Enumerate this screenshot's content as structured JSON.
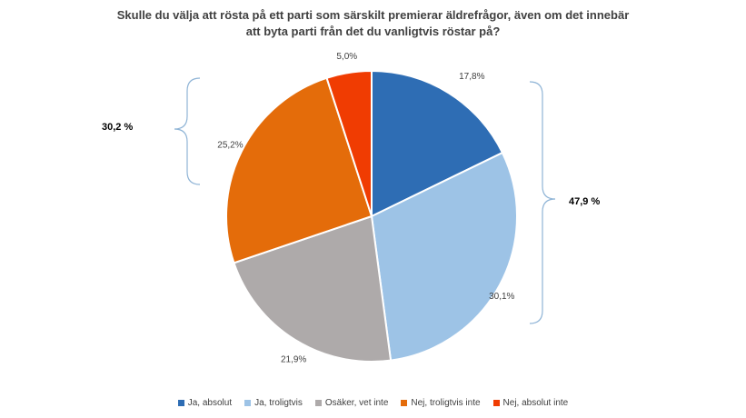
{
  "chart_data": {
    "type": "pie",
    "title_lines": [
      "Skulle du välja att rösta på ett parti som särskilt premierar äldrefrågor, även om det innebär",
      "att byta parti från det du vanligtvis röstar på?"
    ],
    "slices": [
      {
        "name": "Ja, absolut",
        "value": 17.8,
        "label": "17,8%",
        "color": "#2E6DB4"
      },
      {
        "name": "Ja, troligtvis",
        "value": 30.1,
        "label": "30,1%",
        "color": "#9DC3E6"
      },
      {
        "name": "Osäker, vet inte",
        "value": 21.9,
        "label": "21,9%",
        "color": "#AEAAAA"
      },
      {
        "name": "Nej, troligtvis inte",
        "value": 25.2,
        "label": "25,2%",
        "color": "#E46C0A"
      },
      {
        "name": "Nej, absolut inte",
        "value": 5.0,
        "label": "5,0%",
        "color": "#F03C02"
      }
    ],
    "annotations": {
      "yes_total": "47,9 %",
      "no_total": "30,2 %"
    },
    "legend_position": "bottom"
  }
}
